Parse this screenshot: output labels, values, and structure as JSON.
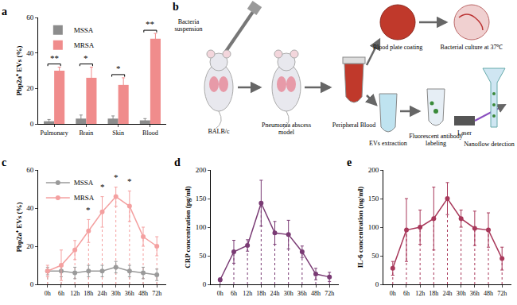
{
  "chart_data": [
    {
      "type": "bar",
      "title": "a",
      "y_label": "Pbp2a⁺ EVs (%)",
      "categories": [
        "Pulmonary",
        "Brain",
        "Skin",
        "Blood"
      ],
      "series": [
        {
          "name": "MSSA",
          "color": "#8c8c8c",
          "values": [
            1.5,
            3,
            3,
            2
          ],
          "errors": [
            1,
            2,
            1.5,
            1
          ]
        },
        {
          "name": "MRSA",
          "color": "#f08c8c",
          "values": [
            30,
            26,
            22,
            48
          ],
          "errors": [
            2,
            6,
            4,
            3
          ]
        }
      ],
      "annotations": [
        {
          "category": "Pulmonary",
          "text": "**"
        },
        {
          "category": "Brain",
          "text": "*"
        },
        {
          "category": "Skin",
          "text": "*"
        },
        {
          "category": "Blood",
          "text": "**"
        }
      ],
      "ylim": [
        0,
        60
      ],
      "yticks": [
        0,
        20,
        40,
        60
      ],
      "grid": false,
      "legend": "top-left"
    },
    {
      "type": "line",
      "title": "c",
      "y_label": "Pbp2a⁺ EVs (%)",
      "categories": [
        "0h",
        "6h",
        "12h",
        "18h",
        "24h",
        "30h",
        "36h",
        "48h",
        "72h"
      ],
      "series": [
        {
          "name": "MSSA",
          "color": "#9a9a9a",
          "values": [
            7,
            7,
            6,
            7,
            7,
            9,
            7,
            6,
            5
          ],
          "errors": [
            2,
            3,
            3,
            3,
            3,
            3,
            3,
            3,
            3
          ]
        },
        {
          "name": "MRSA",
          "color": "#f4a0a0",
          "values": [
            7,
            10,
            18,
            28,
            38,
            46,
            41,
            25,
            20
          ],
          "errors": [
            3,
            8,
            5,
            6,
            8,
            5,
            8,
            5,
            5
          ]
        }
      ],
      "annotations": [
        {
          "category": "18h",
          "text": "*"
        },
        {
          "category": "24h",
          "text": "*"
        },
        {
          "category": "30h",
          "text": "*"
        },
        {
          "category": "36h",
          "text": "*"
        }
      ],
      "ylim": [
        0,
        60
      ],
      "yticks": [
        0,
        20,
        40,
        60
      ],
      "grid": false,
      "legend": "top-left",
      "marker": "circle"
    },
    {
      "type": "line",
      "title": "d",
      "y_label": "CRP concentration (pg/ml)",
      "categories": [
        "0h",
        "6h",
        "12h",
        "18h",
        "24h",
        "30h",
        "36h",
        "48h",
        "72h"
      ],
      "series": [
        {
          "color": "#7a3b74",
          "values": [
            8,
            57,
            68,
            142,
            90,
            87,
            57,
            18,
            13
          ],
          "errors": [
            3,
            20,
            10,
            40,
            20,
            25,
            10,
            10,
            8
          ]
        }
      ],
      "ylim": [
        0,
        200
      ],
      "yticks": [
        0,
        50,
        100,
        150,
        200
      ],
      "grid": false,
      "marker": "circle"
    },
    {
      "type": "line",
      "title": "e",
      "y_label": "IL-6 concentration (ng/ml)",
      "categories": [
        "0h",
        "6h",
        "12h",
        "18h",
        "24h",
        "30h",
        "36h",
        "48h",
        "72h"
      ],
      "series": [
        {
          "color": "#a8385a",
          "values": [
            28,
            95,
            100,
            115,
            150,
            115,
            98,
            95,
            45
          ],
          "errors": [
            12,
            55,
            30,
            55,
            28,
            15,
            30,
            30,
            20
          ]
        }
      ],
      "ylim": [
        0,
        200
      ],
      "yticks": [
        0,
        50,
        100,
        150,
        200
      ],
      "grid": false,
      "marker": "circle"
    }
  ],
  "diagram": {
    "panel": "b",
    "bacteria": [
      "Bacteria",
      "suspension"
    ],
    "mouse": "BALB/c",
    "model": [
      "Pneumonia abscess",
      "model"
    ],
    "blood": "Peripheral Blood",
    "plate": "Blood plate coating",
    "culture": "Bacterial culture at 37℃",
    "evs": "EVs extraction",
    "labeling": [
      "Fluorescent antibody",
      "labeling"
    ],
    "laser": "Laser",
    "nanoflow": "Nanoflow detection"
  }
}
